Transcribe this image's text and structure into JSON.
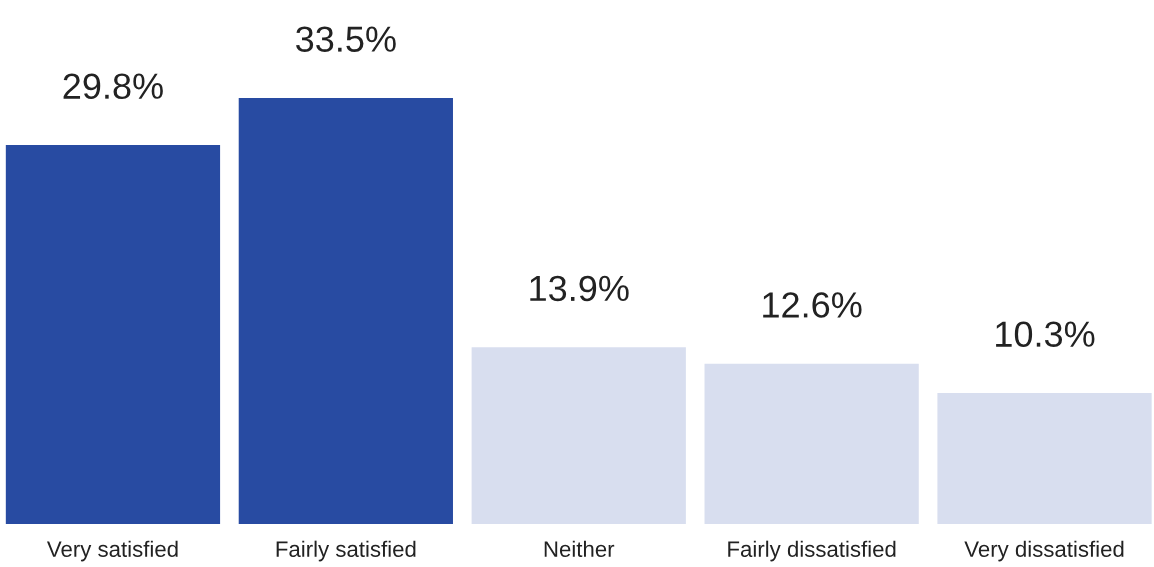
{
  "chart_data": {
    "type": "bar",
    "categories": [
      "Very satisfied",
      "Fairly satisfied",
      "Neither",
      "Fairly dissatisfied",
      "Very dissatisfied"
    ],
    "values": [
      29.8,
      33.5,
      13.9,
      12.6,
      10.3
    ],
    "colors": [
      "#284ba2",
      "#284ba2",
      "#d8deef",
      "#d8deef",
      "#d8deef"
    ],
    "value_labels": [
      "29.8%",
      "33.5%",
      "13.9%",
      "12.6%",
      "10.3%"
    ],
    "grid": false,
    "legend": false
  }
}
